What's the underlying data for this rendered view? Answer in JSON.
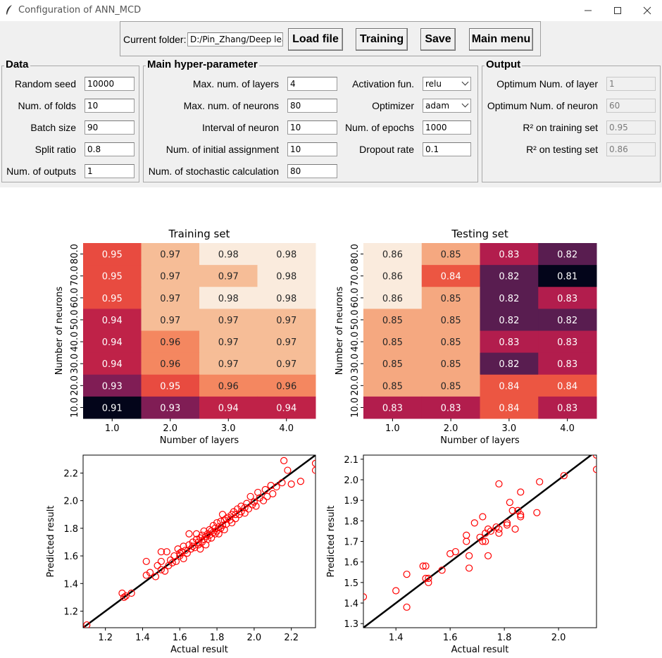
{
  "window": {
    "title": "Configuration of ANN_MCD"
  },
  "toolbar": {
    "folder_label": "Current folder:",
    "folder_value": "D:/Pin_Zhang/Deep learr",
    "load_label": "Load file",
    "training_label": "Training",
    "save_label": "Save",
    "main_menu_label": "Main menu"
  },
  "data_group": {
    "title": "Data",
    "fields": [
      {
        "label": "Random seed",
        "value": "10000"
      },
      {
        "label": "Num. of folds",
        "value": "10"
      },
      {
        "label": "Batch size",
        "value": "90"
      },
      {
        "label": "Split ratio",
        "value": "0.8"
      },
      {
        "label": "Num. of outputs",
        "value": "1"
      }
    ]
  },
  "hyper_group": {
    "title": "Main hyper-parameter",
    "fields": [
      {
        "label": "Max. num. of layers",
        "value": "4"
      },
      {
        "label": "Max. num. of neurons",
        "value": "80"
      },
      {
        "label": "Interval of neuron",
        "value": "10"
      },
      {
        "label": "Num. of initial assignment",
        "value": "10"
      },
      {
        "label": "Num. of stochastic calculation",
        "value": "80"
      }
    ],
    "activation_label": "Activation fun.",
    "activation_value": "relu",
    "optimizer_label": "Optimizer",
    "optimizer_value": "adam",
    "epochs_label": "Num. of epochs",
    "epochs_value": "1000",
    "dropout_label": "Dropout rate",
    "dropout_value": "0.1"
  },
  "output_group": {
    "title": "Output",
    "fields": [
      {
        "label": "Optimum Num. of layer",
        "value": "1"
      },
      {
        "label": "Optimum Num. of neuron",
        "value": "60"
      },
      {
        "label": "R² on training set",
        "value": "0.95"
      },
      {
        "label": "R² on testing set",
        "value": "0.86"
      }
    ]
  },
  "chart_data": [
    {
      "type": "heatmap",
      "title": "Training set",
      "xlabel": "Number of layers",
      "ylabel": "Number of neurons",
      "x": [
        "1.0",
        "2.0",
        "3.0",
        "4.0"
      ],
      "y": [
        "80.0",
        "70.0",
        "60.0",
        "50.0",
        "40.0",
        "30.0",
        "20.0",
        "10.0"
      ],
      "values": [
        [
          0.95,
          0.97,
          0.98,
          0.98
        ],
        [
          0.95,
          0.97,
          0.97,
          0.98
        ],
        [
          0.95,
          0.97,
          0.98,
          0.98
        ],
        [
          0.94,
          0.97,
          0.97,
          0.97
        ],
        [
          0.94,
          0.96,
          0.97,
          0.97
        ],
        [
          0.94,
          0.96,
          0.97,
          0.97
        ],
        [
          0.93,
          0.95,
          0.96,
          0.96
        ],
        [
          0.91,
          0.93,
          0.94,
          0.94
        ]
      ],
      "colorscale": "rocket"
    },
    {
      "type": "heatmap",
      "title": "Testing set",
      "xlabel": "Number of layers",
      "ylabel": "Number of neurons",
      "x": [
        "1.0",
        "2.0",
        "3.0",
        "4.0"
      ],
      "y": [
        "80.0",
        "70.0",
        "60.0",
        "50.0",
        "40.0",
        "30.0",
        "20.0",
        "10.0"
      ],
      "values": [
        [
          0.86,
          0.85,
          0.83,
          0.82
        ],
        [
          0.86,
          0.84,
          0.82,
          0.81
        ],
        [
          0.86,
          0.85,
          0.82,
          0.83
        ],
        [
          0.85,
          0.85,
          0.82,
          0.82
        ],
        [
          0.85,
          0.85,
          0.83,
          0.83
        ],
        [
          0.85,
          0.85,
          0.82,
          0.83
        ],
        [
          0.85,
          0.85,
          0.84,
          0.84
        ],
        [
          0.83,
          0.83,
          0.84,
          0.83
        ]
      ],
      "colorscale": "rocket"
    },
    {
      "type": "scatter",
      "xlabel": "Actual result",
      "ylabel": "Predicted result",
      "xlim": [
        1.08,
        2.33
      ],
      "ylim": [
        1.08,
        2.33
      ],
      "xticks": [
        "1.2",
        "1.4",
        "1.6",
        "1.8",
        "2.0",
        "2.2"
      ],
      "yticks": [
        "1.2",
        "1.4",
        "1.6",
        "1.8",
        "2.0",
        "2.2"
      ],
      "reference_line": "y = x",
      "marker_color": "#ff0000",
      "points": [
        [
          1.1,
          1.1
        ],
        [
          1.29,
          1.33
        ],
        [
          1.3,
          1.3
        ],
        [
          1.31,
          1.31
        ],
        [
          1.34,
          1.33
        ],
        [
          1.42,
          1.46
        ],
        [
          1.42,
          1.56
        ],
        [
          1.44,
          1.48
        ],
        [
          1.47,
          1.45
        ],
        [
          1.48,
          1.53
        ],
        [
          1.5,
          1.5
        ],
        [
          1.5,
          1.56
        ],
        [
          1.5,
          1.63
        ],
        [
          1.52,
          1.49
        ],
        [
          1.53,
          1.63
        ],
        [
          1.54,
          1.53
        ],
        [
          1.55,
          1.57
        ],
        [
          1.56,
          1.55
        ],
        [
          1.57,
          1.6
        ],
        [
          1.58,
          1.56
        ],
        [
          1.59,
          1.65
        ],
        [
          1.6,
          1.6
        ],
        [
          1.6,
          1.62
        ],
        [
          1.61,
          1.63
        ],
        [
          1.62,
          1.58
        ],
        [
          1.62,
          1.67
        ],
        [
          1.63,
          1.64
        ],
        [
          1.64,
          1.62
        ],
        [
          1.65,
          1.68
        ],
        [
          1.65,
          1.76
        ],
        [
          1.66,
          1.65
        ],
        [
          1.67,
          1.7
        ],
        [
          1.67,
          1.67
        ],
        [
          1.68,
          1.66
        ],
        [
          1.69,
          1.72
        ],
        [
          1.69,
          1.76
        ],
        [
          1.7,
          1.7
        ],
        [
          1.7,
          1.68
        ],
        [
          1.71,
          1.73
        ],
        [
          1.71,
          1.65
        ],
        [
          1.72,
          1.75
        ],
        [
          1.72,
          1.7
        ],
        [
          1.73,
          1.78
        ],
        [
          1.73,
          1.72
        ],
        [
          1.74,
          1.68
        ],
        [
          1.74,
          1.74
        ],
        [
          1.75,
          1.76
        ],
        [
          1.75,
          1.72
        ],
        [
          1.76,
          1.79
        ],
        [
          1.76,
          1.75
        ],
        [
          1.77,
          1.73
        ],
        [
          1.77,
          1.78
        ],
        [
          1.78,
          1.82
        ],
        [
          1.78,
          1.77
        ],
        [
          1.79,
          1.76
        ],
        [
          1.79,
          1.8
        ],
        [
          1.8,
          1.84
        ],
        [
          1.8,
          1.78
        ],
        [
          1.81,
          1.81
        ],
        [
          1.81,
          1.76
        ],
        [
          1.82,
          1.85
        ],
        [
          1.82,
          1.8
        ],
        [
          1.83,
          1.9
        ],
        [
          1.83,
          1.82
        ],
        [
          1.84,
          1.86
        ],
        [
          1.84,
          1.79
        ],
        [
          1.85,
          1.87
        ],
        [
          1.85,
          1.83
        ],
        [
          1.86,
          1.88
        ],
        [
          1.87,
          1.86
        ],
        [
          1.88,
          1.9
        ],
        [
          1.88,
          1.84
        ],
        [
          1.89,
          1.92
        ],
        [
          1.9,
          1.9
        ],
        [
          1.9,
          1.87
        ],
        [
          1.91,
          1.94
        ],
        [
          1.92,
          1.9
        ],
        [
          1.93,
          1.96
        ],
        [
          1.93,
          1.92
        ],
        [
          1.95,
          1.95
        ],
        [
          1.95,
          1.91
        ],
        [
          1.96,
          1.98
        ],
        [
          1.97,
          1.94
        ],
        [
          1.98,
          2.03
        ],
        [
          1.99,
          1.97
        ],
        [
          2.0,
          1.99
        ],
        [
          2.01,
          1.96
        ],
        [
          2.02,
          2.06
        ],
        [
          2.03,
          2.02
        ],
        [
          2.05,
          2.0
        ],
        [
          2.06,
          2.08
        ],
        [
          2.07,
          2.03
        ],
        [
          2.09,
          2.11
        ],
        [
          2.1,
          2.05
        ],
        [
          2.12,
          2.1
        ],
        [
          2.15,
          2.13
        ],
        [
          2.16,
          2.29
        ],
        [
          2.18,
          2.22
        ],
        [
          2.2,
          2.12
        ],
        [
          2.25,
          2.14
        ],
        [
          2.33,
          2.22
        ],
        [
          2.33,
          2.27
        ]
      ]
    },
    {
      "type": "scatter",
      "xlabel": "Actual result",
      "ylabel": "Predicted result",
      "xlim": [
        1.28,
        2.14
      ],
      "ylim": [
        1.28,
        2.12
      ],
      "xticks": [
        "1.4",
        "1.6",
        "1.8",
        "2.0"
      ],
      "yticks": [
        "1.3",
        "1.4",
        "1.5",
        "1.6",
        "1.7",
        "1.8",
        "1.9",
        "2.0",
        "2.1"
      ],
      "reference_line": "y = x",
      "marker_color": "#ff0000",
      "points": [
        [
          1.28,
          1.43
        ],
        [
          1.4,
          1.46
        ],
        [
          1.44,
          1.38
        ],
        [
          1.44,
          1.54
        ],
        [
          1.5,
          1.58
        ],
        [
          1.51,
          1.58
        ],
        [
          1.51,
          1.52
        ],
        [
          1.52,
          1.5
        ],
        [
          1.52,
          1.52
        ],
        [
          1.57,
          1.56
        ],
        [
          1.6,
          1.64
        ],
        [
          1.62,
          1.65
        ],
        [
          1.66,
          1.73
        ],
        [
          1.66,
          1.7
        ],
        [
          1.67,
          1.57
        ],
        [
          1.67,
          1.63
        ],
        [
          1.69,
          1.79
        ],
        [
          1.71,
          1.72
        ],
        [
          1.72,
          1.82
        ],
        [
          1.72,
          1.7
        ],
        [
          1.73,
          1.7
        ],
        [
          1.73,
          1.74
        ],
        [
          1.74,
          1.63
        ],
        [
          1.74,
          1.76
        ],
        [
          1.75,
          1.75
        ],
        [
          1.77,
          1.77
        ],
        [
          1.78,
          1.98
        ],
        [
          1.78,
          1.76
        ],
        [
          1.78,
          1.74
        ],
        [
          1.81,
          1.78
        ],
        [
          1.81,
          1.79
        ],
        [
          1.82,
          1.89
        ],
        [
          1.83,
          1.85
        ],
        [
          1.84,
          1.76
        ],
        [
          1.85,
          1.85
        ],
        [
          1.86,
          1.94
        ],
        [
          1.86,
          1.82
        ],
        [
          1.86,
          1.83
        ],
        [
          1.92,
          1.84
        ],
        [
          1.93,
          1.99
        ],
        [
          2.02,
          2.02
        ],
        [
          2.14,
          2.12
        ],
        [
          2.14,
          2.05
        ]
      ]
    }
  ]
}
